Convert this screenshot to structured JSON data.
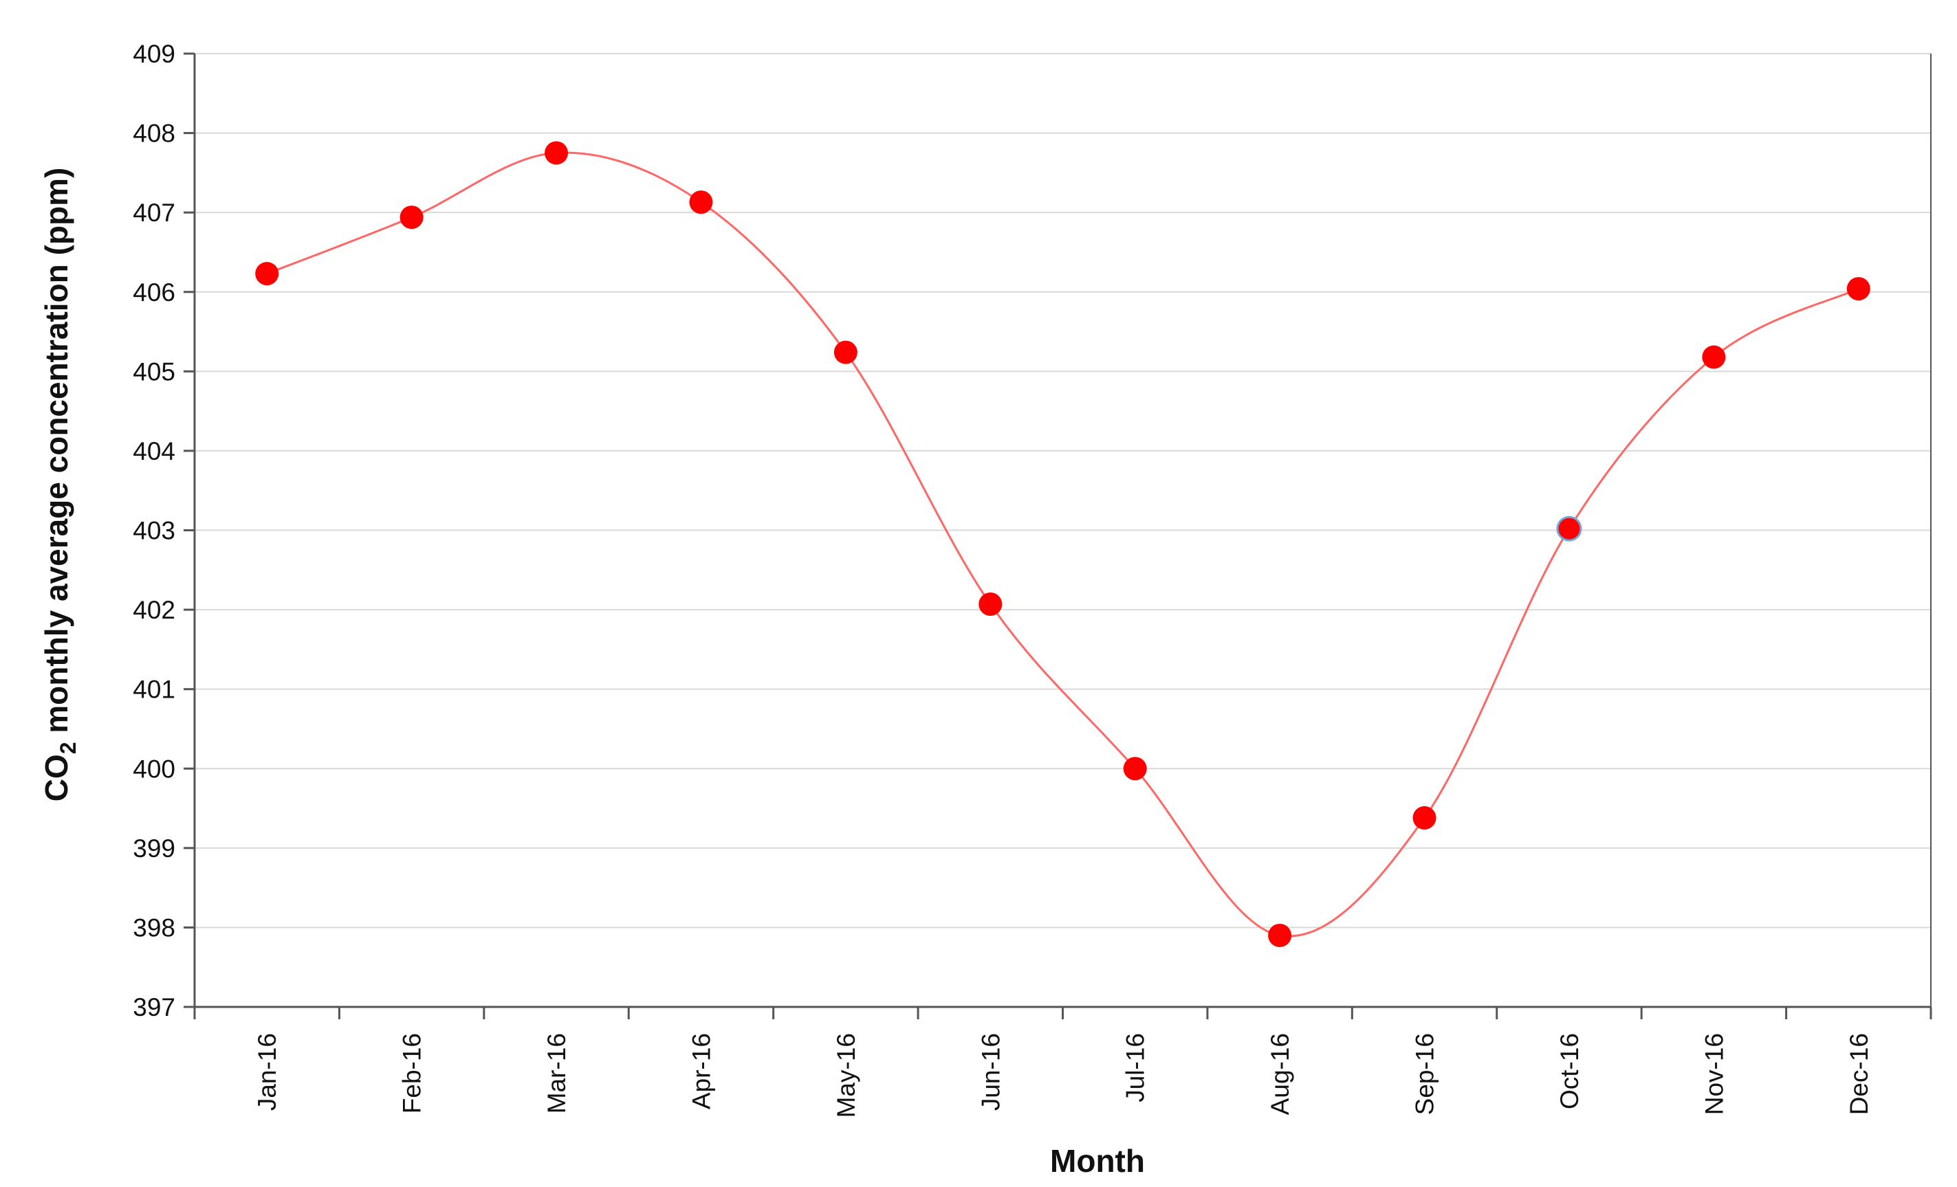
{
  "chart_data": {
    "type": "line",
    "title": "",
    "xlabel": "Month",
    "ylabel_parts": [
      "CO",
      "2",
      " monthly average concentration (ppm)"
    ],
    "categories": [
      "Jan-16",
      "Feb-16",
      "Mar-16",
      "Apr-16",
      "May-16",
      "Jun-16",
      "Jul-16",
      "Aug-16",
      "Sep-16",
      "Oct-16",
      "Nov-16",
      "Dec-16"
    ],
    "series": [
      {
        "values": [
          406.23,
          406.94,
          407.75,
          407.13,
          405.24,
          402.07,
          400.0,
          397.9,
          399.38,
          403.02,
          405.18,
          406.04
        ]
      }
    ],
    "ylim": [
      397,
      409
    ],
    "yticks": [
      397,
      398,
      399,
      400,
      401,
      402,
      403,
      404,
      405,
      406,
      407,
      408,
      409
    ],
    "grid": true,
    "smooth_line": true,
    "legend": "none",
    "colors": {
      "line": "#ff6666",
      "marker": "#ff0000",
      "highlight_marker_outline": "#6fa8dc",
      "gridline": "#d9d9d9",
      "axis": "#555555"
    }
  }
}
